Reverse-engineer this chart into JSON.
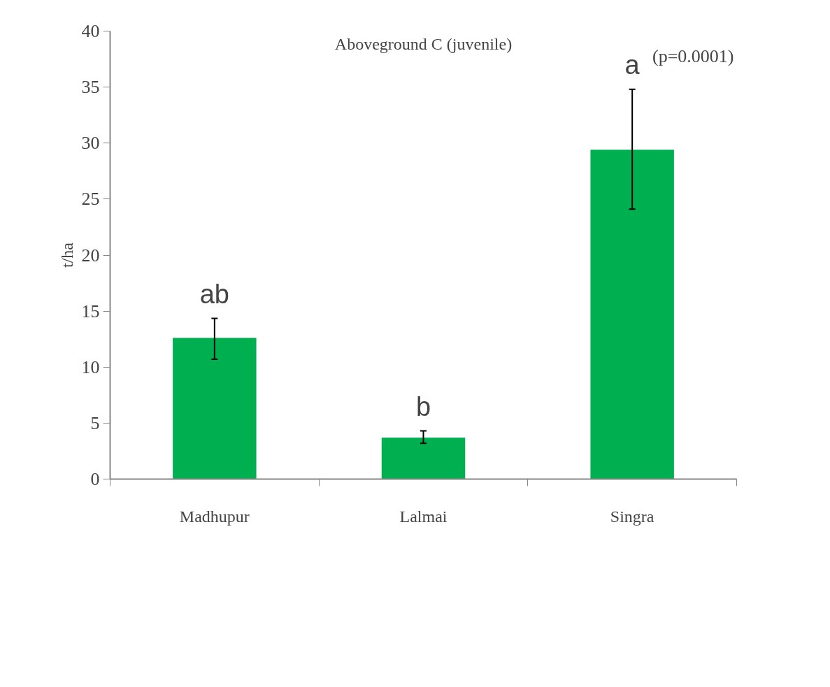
{
  "chart_data": {
    "type": "bar",
    "title": "Aboveground C (juvenile)",
    "ylabel": "t/ha",
    "categories": [
      "Madhupur",
      "Lalmai",
      "Singra"
    ],
    "values": [
      12.6,
      3.7,
      29.4
    ],
    "color": "#00b050",
    "errors": [
      [
        10.7,
        14.35
      ],
      [
        3.2,
        4.3
      ],
      [
        24.1,
        34.8
      ]
    ],
    "ylim": [
      0,
      40
    ],
    "yticks": [
      0,
      5,
      10,
      15,
      20,
      25,
      30,
      35,
      40
    ],
    "grid": false,
    "annotations": [
      {
        "text": "ab",
        "x": "Madhupur",
        "y": 14.35
      },
      {
        "text": "b",
        "x": "Lalmai",
        "y": 4.3
      },
      {
        "text": "a",
        "x": "Singra",
        "y": 34.8
      },
      "(p=0.0001)"
    ]
  }
}
